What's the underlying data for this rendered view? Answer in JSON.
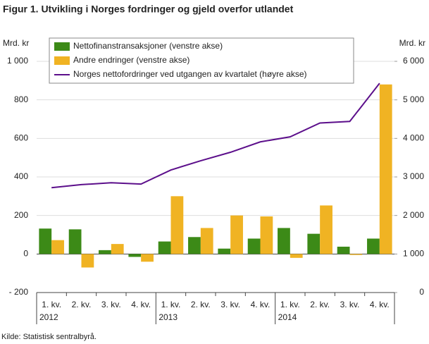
{
  "chart_data": {
    "type": "bar",
    "title": "Figur 1. Utvikling i Norges fordringer og gjeld overfor utlandet",
    "y_label": "Mrd. kr",
    "y2_label": "Mrd. kr",
    "source": "Kilde: Statistisk sentralbyrå.",
    "categories": [
      "1. kv.",
      "2. kv.",
      "3. kv.",
      "4. kv.",
      "1. kv.",
      "2. kv.",
      "3. kv.",
      "4. kv.",
      "1. kv.",
      "2. kv.",
      "3. kv.",
      "4. kv."
    ],
    "x_groups": [
      "2012",
      null,
      null,
      null,
      "2013",
      null,
      null,
      null,
      "2014",
      null,
      null,
      null
    ],
    "series": [
      {
        "name": "Nettofinanstransaksjoner (venstre akse)",
        "type": "bar",
        "color": "#3c8a17",
        "values": [
          132,
          128,
          20,
          -15,
          65,
          88,
          28,
          80,
          135,
          105,
          38,
          80
        ]
      },
      {
        "name": "Andre endringer (venstre akse)",
        "type": "bar",
        "color": "#f0b323",
        "values": [
          72,
          -70,
          52,
          -40,
          300,
          135,
          200,
          195,
          -20,
          252,
          -5,
          880
        ]
      },
      {
        "name": "Norges nettofordringer ved utgangen av kvartalet (høyre akse)",
        "type": "line",
        "axis": "y2",
        "color": "#5c0f8b",
        "values": [
          2720,
          2800,
          2850,
          2815,
          3180,
          3420,
          3640,
          3910,
          4040,
          4400,
          4440,
          5430
        ]
      }
    ],
    "ylim": [
      -200,
      1000
    ],
    "yticks": [
      {
        "value": -200,
        "label": "- 200"
      },
      0,
      200,
      400,
      600,
      800,
      {
        "value": 1000,
        "label": "1 000"
      }
    ],
    "y2lim": [
      0,
      6000
    ],
    "y2ticks": [
      0,
      {
        "value": 1000,
        "label": "1 000"
      },
      {
        "value": 2000,
        "label": "2 000"
      },
      {
        "value": 3000,
        "label": "3 000"
      },
      {
        "value": 4000,
        "label": "4 000"
      },
      {
        "value": 5000,
        "label": "5 000"
      },
      {
        "value": 6000,
        "label": "6 000"
      }
    ],
    "grid": true
  }
}
